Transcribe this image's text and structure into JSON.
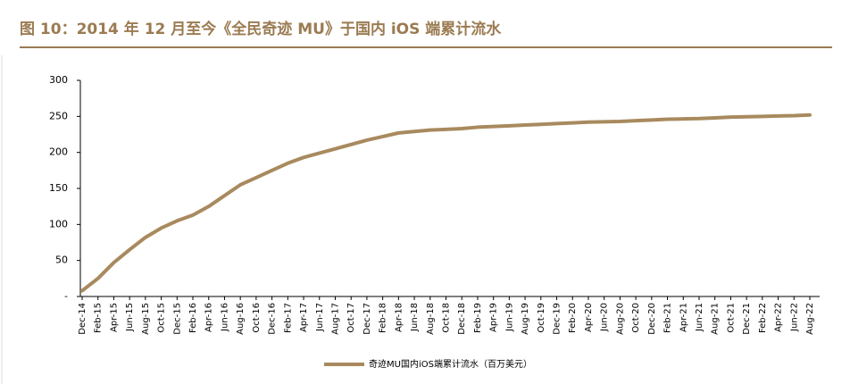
{
  "chart_data": {
    "type": "line",
    "title": "图 10：2014 年 12 月至今《全民奇迹 MU》于国内 iOS 端累计流水",
    "categories": [
      "Dec-14",
      "Feb-15",
      "Apr-15",
      "Jun-15",
      "Aug-15",
      "Oct-15",
      "Dec-15",
      "Feb-16",
      "Apr-16",
      "Jun-16",
      "Aug-16",
      "Oct-16",
      "Dec-16",
      "Feb-17",
      "Apr-17",
      "Jun-17",
      "Aug-17",
      "Oct-17",
      "Dec-17",
      "Feb-18",
      "Apr-18",
      "Jun-18",
      "Aug-18",
      "Oct-18",
      "Dec-18",
      "Feb-19",
      "Apr-19",
      "Jun-19",
      "Aug-19",
      "Oct-19",
      "Dec-19",
      "Feb-20",
      "Apr-20",
      "Jun-20",
      "Aug-20",
      "Oct-20",
      "Dec-20",
      "Feb-21",
      "Apr-21",
      "Jun-21",
      "Aug-21",
      "Oct-21",
      "Dec-21",
      "Feb-22",
      "Apr-22",
      "Jun-22",
      "Aug-22"
    ],
    "series": [
      {
        "name": "奇迹MU国内iOS端累计流水（百万美元）",
        "color": "#a88a5e",
        "values": [
          8,
          25,
          47,
          65,
          82,
          95,
          105,
          113,
          125,
          140,
          155,
          165,
          175,
          185,
          193,
          199,
          205,
          211,
          217,
          222,
          227,
          229,
          231,
          232,
          233,
          235,
          236,
          237,
          238,
          239,
          240,
          241,
          242,
          242.5,
          243,
          244,
          245,
          246,
          246.5,
          247,
          248,
          249,
          249.5,
          250,
          250.5,
          251,
          252
        ]
      }
    ],
    "ylim": [
      0,
      300
    ],
    "yticks": [
      {
        "value": 0,
        "label": "-"
      },
      50,
      100,
      150,
      200,
      250,
      300
    ]
  }
}
